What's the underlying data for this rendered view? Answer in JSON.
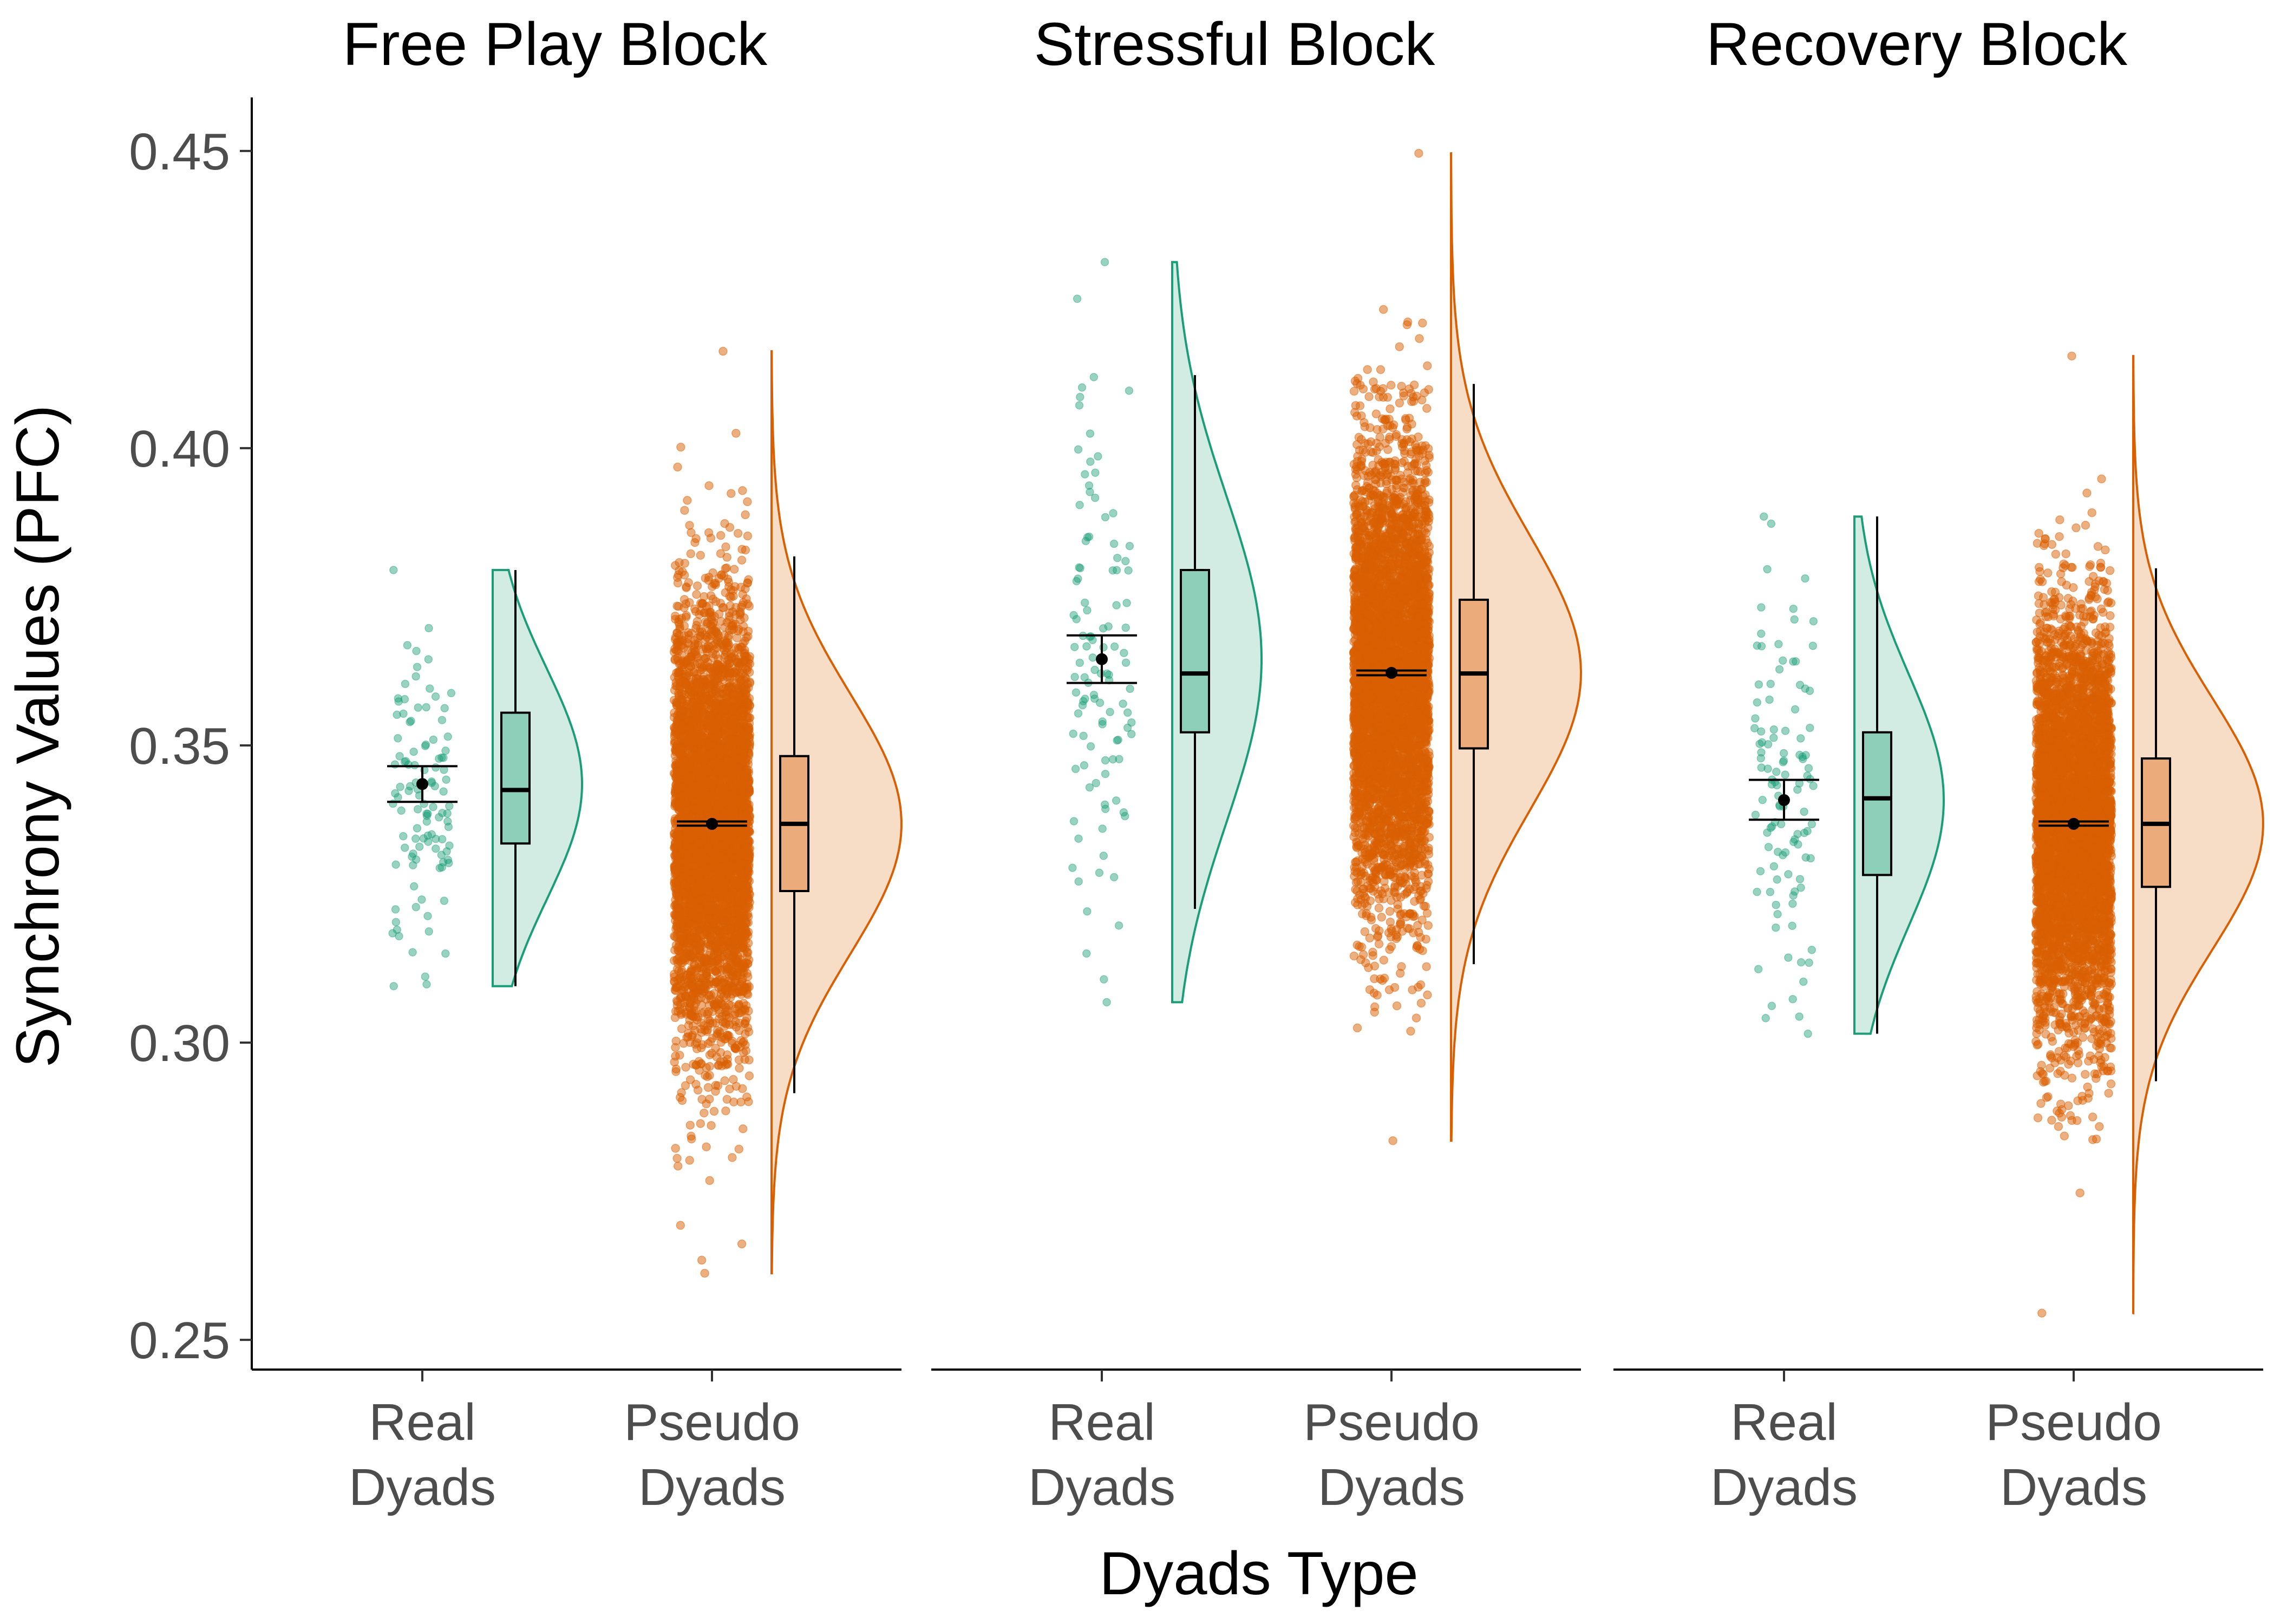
{
  "chart_data": {
    "type": "raincloud",
    "ylabel": "Synchrony Values (PFC)",
    "xlabel": "Dyads Type",
    "ylim": [
      0.245,
      0.459
    ],
    "y_ticks": [
      0.25,
      0.3,
      0.35,
      0.4,
      0.45
    ],
    "y_tick_labels": [
      "0.25",
      "0.30",
      "0.35",
      "0.40",
      "0.45"
    ],
    "categories": [
      {
        "line1": "Real",
        "line2": "Dyads"
      },
      {
        "line1": "Pseudo",
        "line2": "Dyads"
      }
    ],
    "colors": {
      "real": "#1b9e77",
      "real_fill": "#d2ece4",
      "real_box": "#8dcfb9",
      "pseudo": "#d95f02",
      "pseudo_fill": "#f7dcc6",
      "pseudo_box": "#ecab7a"
    },
    "facets": [
      {
        "title": "Free Play Block",
        "groups": [
          {
            "kind": "real",
            "n_points": 110,
            "mean": 0.3435,
            "ci_low": 0.3405,
            "ci_high": 0.3465,
            "q1": 0.3335,
            "median": 0.3425,
            "q3": 0.3555,
            "whisker_low": 0.3095,
            "whisker_high": 0.3795,
            "sd": 0.0155,
            "min": 0.3095,
            "max": 0.3795
          },
          {
            "kind": "pseudo",
            "n_points": 5000,
            "mean": 0.3368,
            "ci_low": 0.3365,
            "ci_high": 0.3372,
            "q1": 0.3255,
            "median": 0.3368,
            "q3": 0.3482,
            "whisker_low": 0.2915,
            "whisker_high": 0.3818,
            "sd": 0.0175,
            "min": 0.2612,
            "max": 0.4163
          }
        ]
      },
      {
        "title": "Stressful Block",
        "groups": [
          {
            "kind": "real",
            "n_points": 110,
            "mean": 0.3645,
            "ci_low": 0.3605,
            "ci_high": 0.3685,
            "q1": 0.3522,
            "median": 0.3621,
            "q3": 0.3795,
            "whisker_low": 0.3225,
            "whisker_high": 0.4123,
            "sd": 0.022,
            "min": 0.3068,
            "max": 0.4313
          },
          {
            "kind": "pseudo",
            "n_points": 5000,
            "mean": 0.3622,
            "ci_low": 0.3618,
            "ci_high": 0.3626,
            "q1": 0.3495,
            "median": 0.3621,
            "q3": 0.3745,
            "whisker_low": 0.3132,
            "whisker_high": 0.4108,
            "sd": 0.0185,
            "min": 0.2835,
            "max": 0.4496
          }
        ]
      },
      {
        "title": "Recovery Block",
        "groups": [
          {
            "kind": "real",
            "n_points": 110,
            "mean": 0.3408,
            "ci_low": 0.3375,
            "ci_high": 0.3442,
            "q1": 0.3282,
            "median": 0.3411,
            "q3": 0.3522,
            "whisker_low": 0.3015,
            "whisker_high": 0.3885,
            "sd": 0.017,
            "min": 0.3015,
            "max": 0.3885
          },
          {
            "kind": "pseudo",
            "n_points": 5000,
            "mean": 0.3368,
            "ci_low": 0.3365,
            "ci_high": 0.3372,
            "q1": 0.3262,
            "median": 0.3368,
            "q3": 0.3478,
            "whisker_low": 0.2935,
            "whisker_high": 0.3798,
            "sd": 0.017,
            "min": 0.2545,
            "max": 0.4155
          }
        ]
      }
    ]
  }
}
